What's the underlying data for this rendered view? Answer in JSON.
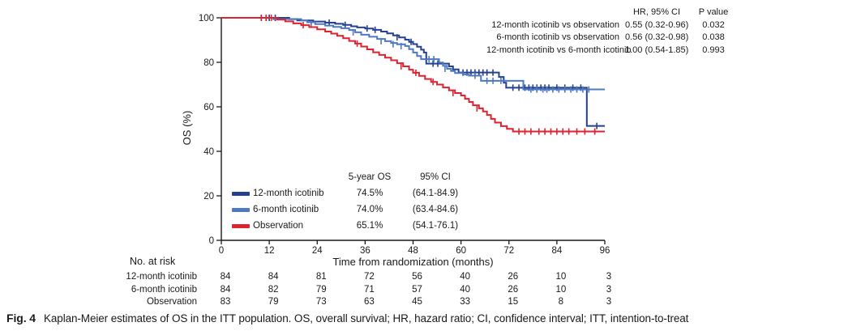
{
  "hr_table": {
    "col_headers": [
      "HR, 95% CI",
      "P value"
    ],
    "rows": [
      {
        "label": "12-month icotinib vs observation",
        "hr": "0.55 (0.32-0.96)",
        "p": "0.032"
      },
      {
        "label": "6-month icotinib vs observation",
        "hr": "0.56 (0.32-0.98)",
        "p": "0.038"
      },
      {
        "label": "12-month icotinib vs 6-month icotinib",
        "hr": "1.00 (0.54-1.85)",
        "p": "0.993"
      }
    ]
  },
  "legend": {
    "col_headers": [
      "5-year OS",
      "95% CI"
    ],
    "rows": [
      {
        "label": "12-month icotinib",
        "os": "74.5%",
        "ci": "(64.1-84.9)"
      },
      {
        "label": "6-month icotinib",
        "os": "74.0%",
        "ci": "(63.4-84.6)"
      },
      {
        "label": "Observation",
        "os": "65.1%",
        "ci": "(54.1-76.1)"
      }
    ]
  },
  "at_risk": {
    "title": "No. at risk",
    "rows": [
      {
        "label": "12-month icotinib",
        "counts": [
          84,
          84,
          81,
          72,
          56,
          40,
          26,
          10,
          3
        ]
      },
      {
        "label": "6-month icotinib",
        "counts": [
          84,
          82,
          79,
          71,
          57,
          40,
          26,
          10,
          3
        ]
      },
      {
        "label": "Observation",
        "counts": [
          83,
          79,
          73,
          63,
          45,
          33,
          15,
          8,
          3
        ]
      }
    ]
  },
  "caption": {
    "label": "Fig. 4",
    "text": "Kaplan-Meier estimates of OS in the ITT population. OS, overall survival; HR, hazard ratio; CI, confidence interval; ITT, intention-to-treat"
  },
  "chart_data": {
    "type": "line",
    "subtype": "kaplan-meier-step",
    "title": "",
    "xlabel": "Time from randomization (months)",
    "ylabel": "OS (%)",
    "xlim": [
      0,
      96
    ],
    "ylim": [
      0,
      100
    ],
    "x_ticks": [
      0,
      12,
      24,
      36,
      48,
      60,
      72,
      84,
      96
    ],
    "y_ticks": [
      0,
      20,
      40,
      60,
      80,
      100
    ],
    "grid": false,
    "axis_color": "#1a1a1a",
    "series": [
      {
        "name": "12-month icotinib",
        "color": "#24408e",
        "five_year_os": 74.5,
        "five_year_ci": [
          64.1,
          84.9
        ],
        "steps": [
          [
            0,
            100
          ],
          [
            17,
            99.4
          ],
          [
            19,
            98.8
          ],
          [
            23,
            98.3
          ],
          [
            26,
            97.8
          ],
          [
            28.5,
            97.3
          ],
          [
            30.5,
            96.8
          ],
          [
            32.5,
            96.2
          ],
          [
            34,
            95.7
          ],
          [
            36,
            95.2
          ],
          [
            38,
            94.6
          ],
          [
            40,
            93.8
          ],
          [
            41.5,
            93
          ],
          [
            43,
            92.1
          ],
          [
            44.5,
            91.2
          ],
          [
            46,
            90.2
          ],
          [
            47,
            89.2
          ],
          [
            48,
            88.2
          ],
          [
            49,
            87
          ],
          [
            50,
            85.7
          ],
          [
            50.7,
            84.4
          ],
          [
            51.3,
            79.4
          ],
          [
            57,
            78.2
          ],
          [
            58,
            76.8
          ],
          [
            59.4,
            75.4
          ],
          [
            69.5,
            73.4
          ],
          [
            70.7,
            70.8
          ],
          [
            71.3,
            68.6
          ],
          [
            91.5,
            51.4
          ],
          [
            96,
            51.4
          ]
        ],
        "censor_ticks": [
          [
            12,
            100
          ],
          [
            13.5,
            100
          ],
          [
            27,
            97.8
          ],
          [
            31,
            96.8
          ],
          [
            36.5,
            95.2
          ],
          [
            38.5,
            94.6
          ],
          [
            44,
            91.2
          ],
          [
            47.5,
            89.2
          ],
          [
            53,
            79.4
          ],
          [
            54.2,
            79.4
          ],
          [
            60.5,
            75.4
          ],
          [
            61.5,
            75.4
          ],
          [
            62.5,
            75.4
          ],
          [
            63.5,
            75.4
          ],
          [
            64.5,
            75.4
          ],
          [
            65.5,
            75.4
          ],
          [
            66.5,
            75.4
          ],
          [
            68,
            75.4
          ],
          [
            73,
            68.6
          ],
          [
            74.5,
            68.6
          ],
          [
            76,
            68.6
          ],
          [
            77,
            68.6
          ],
          [
            78,
            68.6
          ],
          [
            79,
            68.6
          ],
          [
            80,
            68.6
          ],
          [
            81,
            68.6
          ],
          [
            82,
            68.6
          ],
          [
            84,
            68.6
          ],
          [
            86,
            68.6
          ],
          [
            88,
            68.6
          ],
          [
            90,
            68.6
          ],
          [
            94,
            51.4
          ]
        ]
      },
      {
        "name": "6-month icotinib",
        "color": "#4d79c0",
        "five_year_os": 74.0,
        "five_year_ci": [
          63.4,
          84.6
        ],
        "steps": [
          [
            0,
            100
          ],
          [
            13,
            99.4
          ],
          [
            20,
            98.8
          ],
          [
            21.5,
            98
          ],
          [
            23.5,
            97.2
          ],
          [
            26,
            96.5
          ],
          [
            28,
            95.9
          ],
          [
            30,
            95.3
          ],
          [
            32,
            94.5
          ],
          [
            33.5,
            93.5
          ],
          [
            35,
            92.4
          ],
          [
            37,
            91.5
          ],
          [
            39,
            90.5
          ],
          [
            41,
            89.5
          ],
          [
            42.5,
            88.7
          ],
          [
            44,
            88.1
          ],
          [
            46,
            87.3
          ],
          [
            47,
            85.9
          ],
          [
            48,
            84.4
          ],
          [
            49,
            82.8
          ],
          [
            50,
            81.4
          ],
          [
            54.5,
            79.9
          ],
          [
            55.5,
            78.4
          ],
          [
            56.5,
            77.1
          ],
          [
            57.5,
            76.1
          ],
          [
            58.5,
            75.2
          ],
          [
            60.5,
            74.5
          ],
          [
            62,
            74
          ],
          [
            65,
            71.7
          ],
          [
            75.6,
            67.8
          ],
          [
            96,
            67.8
          ]
        ],
        "censor_ticks": [
          [
            10,
            100
          ],
          [
            22.5,
            97.2
          ],
          [
            33,
            93.5
          ],
          [
            40,
            89.5
          ],
          [
            43,
            88.1
          ],
          [
            45,
            87.3
          ],
          [
            52,
            81.4
          ],
          [
            53.2,
            81.4
          ],
          [
            56,
            77.1
          ],
          [
            63.5,
            74
          ],
          [
            66.5,
            71.7
          ],
          [
            68,
            71.7
          ],
          [
            70,
            71.7
          ],
          [
            77.5,
            67.8
          ],
          [
            79,
            67.8
          ],
          [
            80.5,
            67.8
          ],
          [
            81.5,
            67.8
          ],
          [
            83,
            67.8
          ],
          [
            84.5,
            67.8
          ],
          [
            86,
            67.8
          ],
          [
            87.5,
            67.8
          ],
          [
            89,
            67.8
          ],
          [
            90.5,
            67.8
          ],
          [
            92,
            67.8
          ]
        ]
      },
      {
        "name": "Observation",
        "color": "#dd2230",
        "five_year_os": 65.1,
        "five_year_ci": [
          54.1,
          76.1
        ],
        "steps": [
          [
            0,
            100
          ],
          [
            14,
            99.2
          ],
          [
            16,
            98.4
          ],
          [
            18,
            97.5
          ],
          [
            20,
            96.7
          ],
          [
            22,
            95.8
          ],
          [
            24,
            94.8
          ],
          [
            26,
            93.8
          ],
          [
            27.5,
            92.9
          ],
          [
            29,
            91.9
          ],
          [
            30.5,
            90.8
          ],
          [
            32,
            89.6
          ],
          [
            33.5,
            88.4
          ],
          [
            35,
            87.1
          ],
          [
            36.5,
            85.8
          ],
          [
            38,
            84.5
          ],
          [
            39.5,
            83.3
          ],
          [
            41,
            82.1
          ],
          [
            42.5,
            80.9
          ],
          [
            44,
            79.6
          ],
          [
            45.5,
            78.2
          ],
          [
            47,
            76.7
          ],
          [
            48,
            75.3
          ],
          [
            49.5,
            73.9
          ],
          [
            51,
            72.5
          ],
          [
            52.5,
            71.2
          ],
          [
            54,
            70
          ],
          [
            55.5,
            68.7
          ],
          [
            57,
            67.4
          ],
          [
            58.5,
            66.2
          ],
          [
            60,
            65.1
          ],
          [
            61,
            63.6
          ],
          [
            62,
            62.2
          ],
          [
            63,
            60.7
          ],
          [
            64.5,
            59.3
          ],
          [
            65.5,
            57.9
          ],
          [
            66.5,
            56.3
          ],
          [
            67.5,
            54.6
          ],
          [
            68.5,
            52.9
          ],
          [
            70,
            51.3
          ],
          [
            71.5,
            50.1
          ],
          [
            73,
            48.9
          ],
          [
            96,
            48.9
          ]
        ],
        "censor_ticks": [
          [
            10,
            100
          ],
          [
            11.2,
            100
          ],
          [
            12.5,
            100
          ],
          [
            20.5,
            96.7
          ],
          [
            34,
            88.4
          ],
          [
            45,
            78.2
          ],
          [
            48.7,
            75.3
          ],
          [
            53,
            71.2
          ],
          [
            58,
            66.2
          ],
          [
            64,
            59.3
          ],
          [
            74.5,
            48.9
          ],
          [
            76,
            48.9
          ],
          [
            77.5,
            48.9
          ],
          [
            79.5,
            48.9
          ],
          [
            81,
            48.9
          ],
          [
            82.5,
            48.9
          ],
          [
            84,
            48.9
          ],
          [
            85.5,
            48.9
          ],
          [
            87,
            48.9
          ],
          [
            89,
            48.9
          ],
          [
            91,
            48.9
          ],
          [
            93.5,
            48.9
          ]
        ]
      }
    ],
    "legend_position": "lower-left-inside",
    "hr_annotation_position": "upper-right"
  }
}
